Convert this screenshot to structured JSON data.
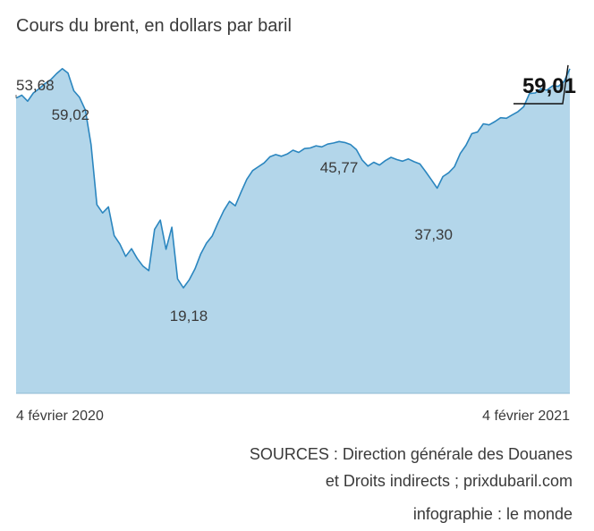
{
  "title": "Cours du brent, en dollars par baril",
  "sources": {
    "line1": "SOURCES : Direction générale des Douanes",
    "line2": "et Droits indirects ; prixdubaril.com"
  },
  "credit": "infographie : le monde",
  "colors": {
    "fill": "#b3d6ea",
    "line": "#2b86bf",
    "text": "#3a3a3a",
    "highlight": "#111111"
  },
  "chart_data": {
    "type": "area",
    "x_labels": [
      "4 février 2020",
      "4 février 2021"
    ],
    "x_start": "2020-02-04",
    "x_end": "2021-02-04",
    "ylim": [
      0,
      65
    ],
    "grid": false,
    "series": [
      {
        "values": [
          53.68,
          54.2,
          53.1,
          54.6,
          55.4,
          56.3,
          57.0,
          58.1,
          59.02,
          58.2,
          55.0,
          53.8,
          51.5,
          45.2,
          34.3,
          32.8,
          33.9,
          28.7,
          27.1,
          24.9,
          26.3,
          24.5,
          23.1,
          22.3,
          29.8,
          31.5,
          26.2,
          30.2,
          20.8,
          19.18,
          20.6,
          22.6,
          25.3,
          27.3,
          28.6,
          31.0,
          33.2,
          34.9,
          34.1,
          36.6,
          38.9,
          40.5,
          41.2,
          41.9,
          43.0,
          43.4,
          43.1,
          43.5,
          44.2,
          43.8,
          44.5,
          44.6,
          45.0,
          44.8,
          45.3,
          45.5,
          45.77,
          45.6,
          45.2,
          44.3,
          42.4,
          41.3,
          42.0,
          41.5,
          42.3,
          42.9,
          42.5,
          42.2,
          42.6,
          42.1,
          41.7,
          40.3,
          38.8,
          37.3,
          39.4,
          40.1,
          41.2,
          43.6,
          45.1,
          47.2,
          47.5,
          49.0,
          48.8,
          49.4,
          50.1,
          50.0,
          50.6,
          51.2,
          52.1,
          54.5,
          54.6,
          55.4,
          55.1,
          55.9,
          55.8,
          56.7,
          59.01
        ]
      }
    ],
    "annotations": [
      {
        "label": "53,68",
        "index": 0
      },
      {
        "label": "59,02",
        "index": 8
      },
      {
        "label": "19,18",
        "index": 29
      },
      {
        "label": "45,77",
        "index": 56
      },
      {
        "label": "37,30",
        "index": 73
      },
      {
        "label": "59,01",
        "index": 96,
        "emphasis": true
      }
    ]
  }
}
